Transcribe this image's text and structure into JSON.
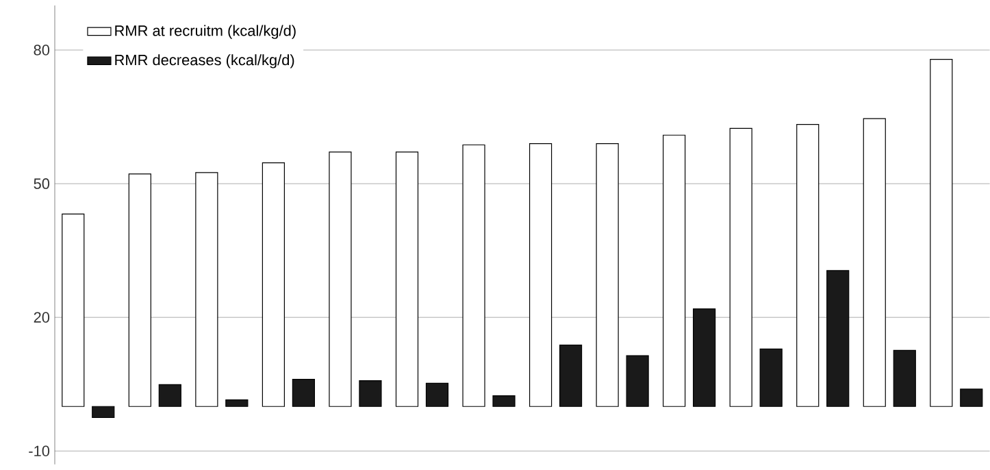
{
  "chart_data": {
    "type": "bar",
    "categories": [
      null,
      null,
      null,
      null,
      null,
      null,
      null,
      null,
      null,
      null,
      null,
      null,
      null,
      null
    ],
    "series": [
      {
        "name": "RMR at recruitm (kcal/kg/d)",
        "color": "#ffffff",
        "values": [
          43.2,
          52.2,
          52.5,
          54.7,
          57.1,
          57.1,
          58.7,
          59.0,
          59.0,
          60.9,
          62.4,
          63.3,
          64.6,
          77.9
        ]
      },
      {
        "name": "RMR decreases (kcal/kg/d)",
        "color": "#1a1a1a",
        "values": [
          -2.5,
          4.9,
          1.5,
          6.1,
          5.8,
          5.2,
          2.4,
          13.8,
          11.4,
          21.9,
          12.9,
          30.5,
          12.6,
          3.9
        ]
      }
    ],
    "ylim": [
      -13,
      90
    ],
    "yticks": [
      -10,
      20,
      50,
      80
    ],
    "grid": "y",
    "legend": "top left"
  }
}
